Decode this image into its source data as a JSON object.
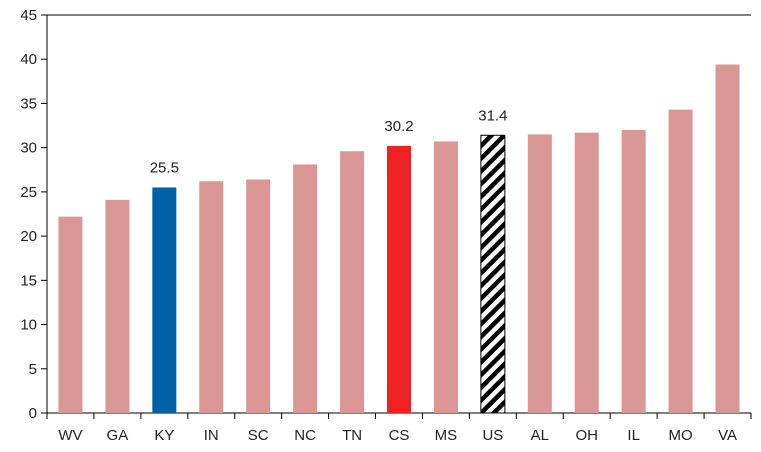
{
  "chart_data": {
    "type": "bar",
    "title": "",
    "xlabel": "",
    "ylabel": "",
    "ylim": [
      0,
      45
    ],
    "yticks": [
      0,
      5,
      10,
      15,
      20,
      25,
      30,
      35,
      40,
      45
    ],
    "grid": false,
    "legend": "none",
    "categories": [
      "WV",
      "GA",
      "KY",
      "IN",
      "SC",
      "NC",
      "TN",
      "CS",
      "MS",
      "US",
      "AL",
      "OH",
      "IL",
      "MO",
      "VA"
    ],
    "values": [
      22.2,
      24.1,
      25.5,
      26.2,
      26.4,
      28.1,
      29.6,
      30.2,
      30.7,
      31.4,
      31.5,
      31.7,
      32.0,
      34.3,
      39.4
    ],
    "bar_styles": [
      "default",
      "default",
      "highlight-blue",
      "default",
      "default",
      "default",
      "default",
      "highlight-red",
      "default",
      "hatched",
      "default",
      "default",
      "default",
      "default",
      "default"
    ],
    "data_labels": [
      {
        "category": "KY",
        "text": "25.5"
      },
      {
        "category": "CS",
        "text": "30.2"
      },
      {
        "category": "US",
        "text": "31.4"
      }
    ],
    "colors": {
      "default": "#d99694",
      "highlight-blue": "#0060a8",
      "highlight-red": "#ee2222",
      "hatch": "#000000",
      "axis": "#000000"
    }
  }
}
